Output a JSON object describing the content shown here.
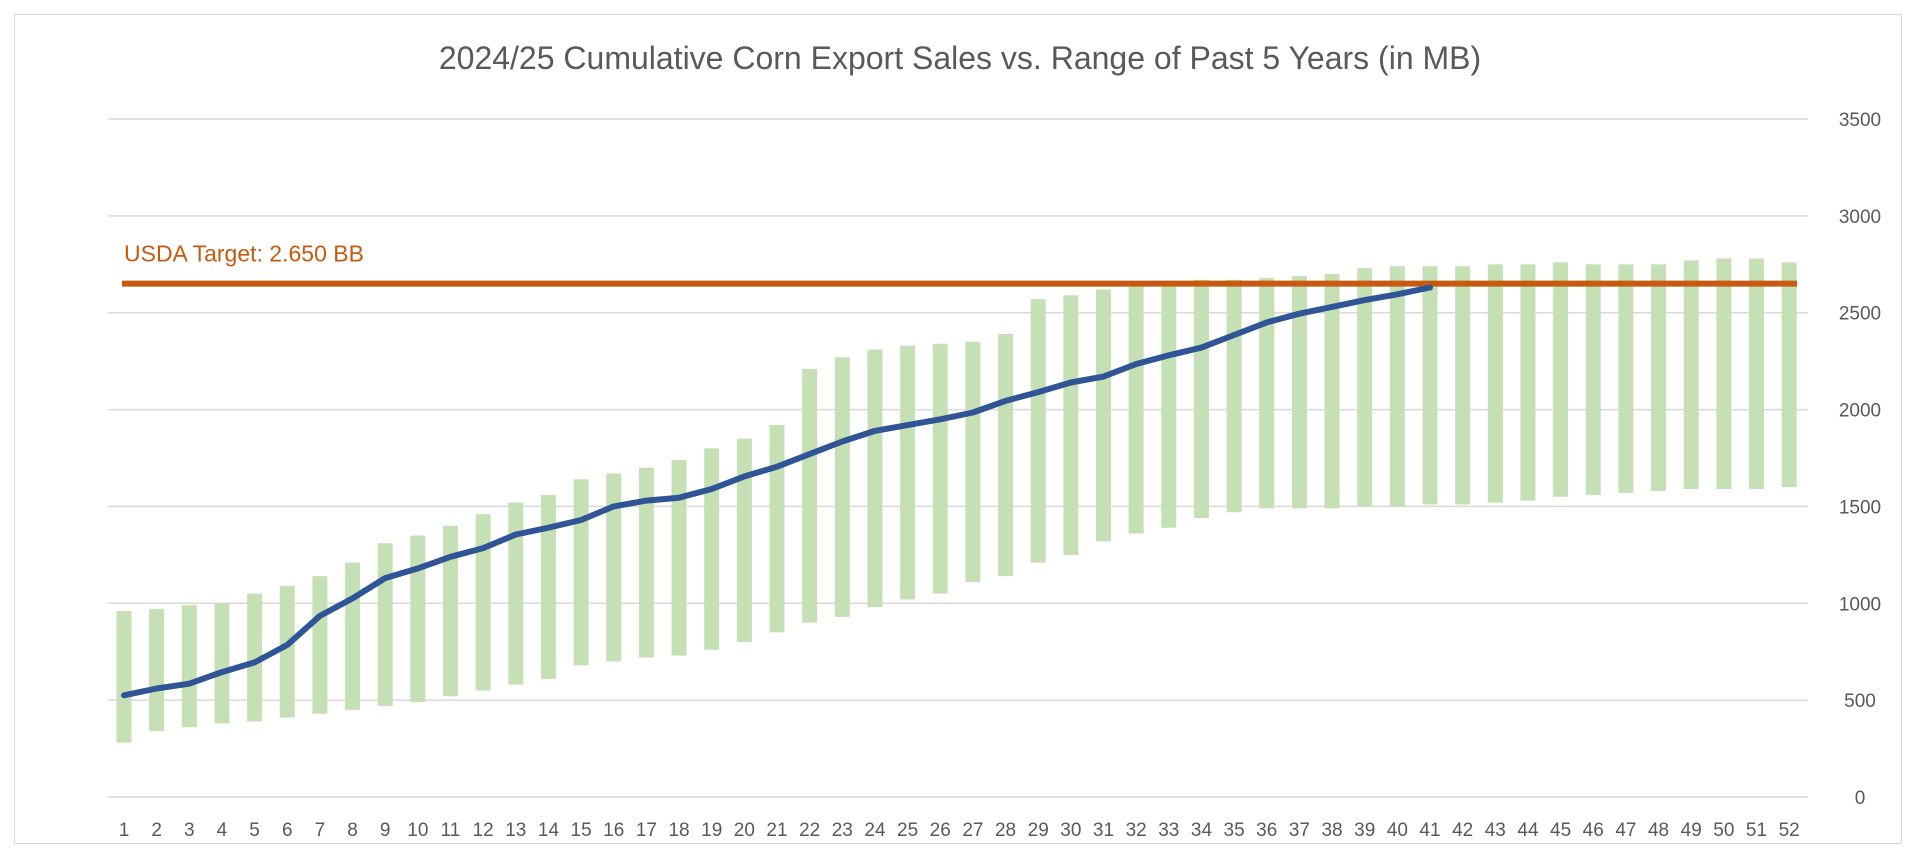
{
  "chart_data": {
    "type": "bar",
    "title": "2024/25 Cumulative Corn Export Sales vs. Range of Past 5 Years (in MB)",
    "xlabel": "",
    "ylabel": "",
    "categories": [
      "1",
      "2",
      "3",
      "4",
      "5",
      "6",
      "7",
      "8",
      "9",
      "10",
      "11",
      "12",
      "13",
      "14",
      "15",
      "16",
      "17",
      "18",
      "19",
      "20",
      "21",
      "22",
      "23",
      "24",
      "25",
      "26",
      "27",
      "28",
      "29",
      "30",
      "31",
      "32",
      "33",
      "34",
      "35",
      "36",
      "37",
      "38",
      "39",
      "40",
      "41",
      "42",
      "43",
      "44",
      "45",
      "46",
      "47",
      "48",
      "49",
      "50",
      "51",
      "52"
    ],
    "ylim": [
      0,
      3500
    ],
    "yticks": [
      0,
      500,
      1000,
      1500,
      2000,
      2500,
      3000,
      3500
    ],
    "y_axis_side": "right",
    "grid": true,
    "range_bars": {
      "low": [
        280,
        340,
        360,
        380,
        390,
        410,
        430,
        450,
        470,
        490,
        520,
        550,
        580,
        610,
        680,
        700,
        720,
        730,
        760,
        800,
        850,
        900,
        930,
        980,
        1020,
        1050,
        1110,
        1140,
        1210,
        1250,
        1320,
        1360,
        1390,
        1440,
        1470,
        1490,
        1490,
        1490,
        1500,
        1500,
        1510,
        1510,
        1520,
        1530,
        1550,
        1560,
        1570,
        1580,
        1590,
        1590,
        1590,
        1600
      ],
      "high": [
        960,
        970,
        990,
        1000,
        1050,
        1090,
        1140,
        1210,
        1310,
        1350,
        1400,
        1460,
        1520,
        1560,
        1640,
        1670,
        1700,
        1740,
        1800,
        1850,
        1920,
        2210,
        2270,
        2310,
        2330,
        2340,
        2350,
        2390,
        2570,
        2590,
        2620,
        2640,
        2650,
        2670,
        2670,
        2680,
        2690,
        2700,
        2730,
        2740,
        2740,
        2740,
        2750,
        2750,
        2760,
        2750,
        2750,
        2750,
        2770,
        2780,
        2780,
        2760
      ]
    },
    "series": [
      {
        "x": [
          1,
          2,
          3,
          4,
          5,
          6,
          7,
          8,
          9,
          10,
          11,
          12,
          13,
          14,
          15,
          16,
          17,
          18,
          19,
          20,
          21,
          22,
          23,
          24,
          25,
          26,
          27,
          28,
          29,
          30,
          31,
          32,
          33,
          34,
          35,
          36,
          37,
          38,
          39,
          40,
          41
        ],
        "values": [
          525,
          560,
          585,
          645,
          695,
          785,
          935,
          1025,
          1130,
          1180,
          1240,
          1285,
          1355,
          1390,
          1430,
          1500,
          1530,
          1545,
          1590,
          1655,
          1705,
          1770,
          1835,
          1890,
          1920,
          1950,
          1985,
          2045,
          2090,
          2140,
          2170,
          2235,
          2280,
          2320,
          2385,
          2450,
          2495,
          2530,
          2565,
          2595,
          2630
        ],
        "color": "#2f5597"
      }
    ],
    "target": {
      "label": "USDA Target: 2.650 BB",
      "value": 2650,
      "color": "#c55a11"
    },
    "colors": {
      "range": "#c5e0b4",
      "grid": "#d9d9d9",
      "text": "#595959"
    }
  }
}
